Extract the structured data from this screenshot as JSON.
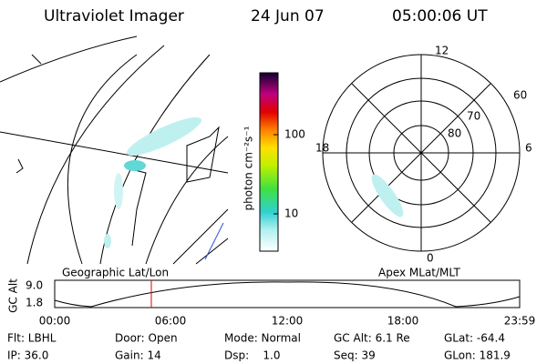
{
  "header": {
    "title": "Ultraviolet Imager",
    "date": "24 Jun 07",
    "time": "05:00:06 UT"
  },
  "colorbar": {
    "label": "photon cm⁻²s⁻¹",
    "ticks": [
      "100",
      "10"
    ]
  },
  "polar": {
    "mlt_labels": [
      "12",
      "6",
      "0",
      "18"
    ],
    "lat_labels": [
      "60",
      "70",
      "80"
    ]
  },
  "panels": {
    "left": "Geographic Lat/Lon",
    "right": "Apex MLat/MLT"
  },
  "altitude": {
    "ylabel": "GC Alt",
    "yticks": [
      "9.0",
      "1.8"
    ],
    "xticks": [
      "00:00",
      "06:00",
      "12:00",
      "18:00",
      "23:59"
    ]
  },
  "footer": {
    "rows": [
      [
        "Flt: LBHL",
        "Door: Open",
        "Mode: Normal",
        "GC Alt: 6.1 Re",
        "GLat: -64.4"
      ],
      [
        "IP: 36.0",
        "Gain: 14",
        "Dsp:    1.0",
        "Seq: 39",
        "GLon: 181.9"
      ]
    ]
  }
}
